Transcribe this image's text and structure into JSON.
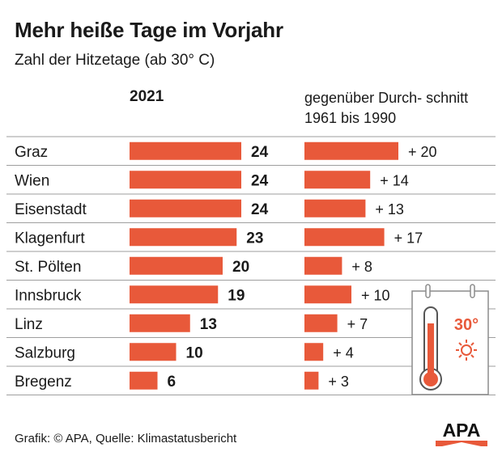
{
  "header": {
    "title": "Mehr heiße Tage im Vorjahr",
    "subtitle": "Zahl der Hitzetage (ab 30° C)",
    "col_left": "2021",
    "col_right": "gegenüber Durch- schnitt 1961 bis 1990"
  },
  "chart_data": {
    "type": "bar",
    "categories": [
      "Graz",
      "Wien",
      "Eisenstadt",
      "Klagenfurt",
      "St. Pölten",
      "Innsbruck",
      "Linz",
      "Salzburg",
      "Bregenz"
    ],
    "series": [
      {
        "name": "2021",
        "values": [
          24,
          24,
          24,
          23,
          20,
          19,
          13,
          10,
          6
        ]
      },
      {
        "name": "gegenüber Durchschnitt 1961 bis 1990",
        "values": [
          20,
          14,
          13,
          17,
          8,
          10,
          7,
          4,
          3
        ]
      }
    ],
    "diff_labels": [
      "+ 20",
      "+ 14",
      "+ 13",
      "+ 17",
      "+ 8",
      "+ 10",
      "+ 7",
      "+ 4",
      "+ 3"
    ],
    "bar_color": "#e8593a",
    "divider_color": "#9e9e9e"
  },
  "footer": {
    "source": "Grafik: © APA, Quelle: Klimastatusbericht",
    "logo_text": "APA"
  },
  "thermometer": {
    "label": "30°",
    "icon": "thermometer-calendar-icon",
    "accent": "#e8593a"
  }
}
